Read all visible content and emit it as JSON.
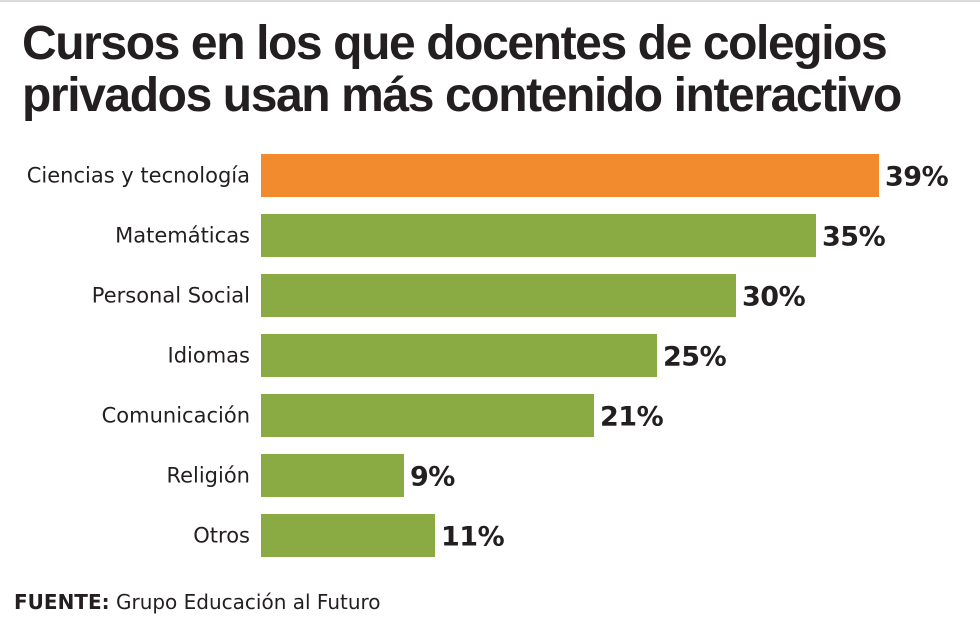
{
  "title_lines": [
    "Cursos en los que docentes de colegios",
    "privados usan más contenido interactivo"
  ],
  "source": {
    "label": "FUENTE:",
    "text": " Grupo Educación al Futuro"
  },
  "colors": {
    "highlight": "#f28a2e",
    "bar": "#8aab44",
    "text": "#231f20"
  },
  "chart_data": {
    "type": "bar",
    "orientation": "horizontal",
    "title": "Cursos en los que docentes de colegios privados usan más contenido interactivo",
    "categories": [
      "Ciencias y tecnología",
      "Matemáticas",
      "Personal Social",
      "Idiomas",
      "Comunicación",
      "Religión",
      "Otros"
    ],
    "values": [
      39,
      35,
      30,
      25,
      21,
      9,
      11
    ],
    "value_labels": [
      "39%",
      "35%",
      "30%",
      "25%",
      "21%",
      "9%",
      "11%"
    ],
    "highlight_index": 0,
    "unit": "%",
    "xlim": [
      0,
      39
    ],
    "grid": false,
    "legend": "none"
  }
}
